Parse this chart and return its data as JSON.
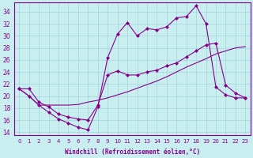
{
  "xlabel": "Windchill (Refroidissement éolien,°C)",
  "bg_color": "#c8eef0",
  "grid_color": "#a8d8dc",
  "line_color": "#880088",
  "xlim": [
    -0.5,
    23.5
  ],
  "ylim": [
    13.5,
    35.5
  ],
  "yticks": [
    14,
    16,
    18,
    20,
    22,
    24,
    26,
    28,
    30,
    32,
    34
  ],
  "xticks": [
    0,
    1,
    2,
    3,
    4,
    5,
    6,
    7,
    8,
    9,
    10,
    11,
    12,
    13,
    14,
    15,
    16,
    17,
    18,
    19,
    20,
    21,
    22,
    23
  ],
  "line1_x": [
    0,
    1,
    2,
    3,
    4,
    5,
    6,
    7,
    8,
    9,
    10,
    11,
    12,
    13,
    14,
    15,
    16,
    17,
    18,
    19,
    20,
    21,
    22,
    23
  ],
  "line1_y": [
    21.2,
    20.0,
    18.5,
    17.3,
    16.2,
    15.5,
    14.8,
    14.4,
    18.2,
    26.4,
    30.3,
    32.2,
    30.0,
    31.2,
    31.0,
    31.5,
    33.0,
    33.2,
    35.0,
    32.0,
    21.5,
    20.2,
    19.7,
    19.7
  ],
  "line2_x": [
    0,
    1,
    2,
    3,
    4,
    5,
    6,
    7,
    8,
    9,
    10,
    11,
    12,
    13,
    14,
    15,
    16,
    17,
    18,
    19,
    20,
    21,
    22,
    23
  ],
  "line2_y": [
    21.2,
    20.0,
    18.5,
    18.5,
    18.5,
    18.5,
    18.6,
    19.0,
    19.3,
    19.7,
    20.2,
    20.7,
    21.3,
    21.9,
    22.5,
    23.2,
    24.0,
    24.8,
    25.5,
    26.2,
    27.0,
    27.5,
    28.0,
    28.2
  ],
  "line3_x": [
    0,
    1,
    2,
    3,
    4,
    5,
    6,
    7,
    8,
    9,
    10,
    11,
    12,
    13,
    14,
    15,
    16,
    17,
    18,
    19,
    20,
    21,
    22,
    23
  ],
  "line3_y": [
    21.2,
    21.2,
    19.0,
    18.2,
    17.0,
    16.5,
    16.2,
    16.0,
    18.5,
    23.5,
    24.2,
    23.5,
    23.5,
    24.0,
    24.3,
    25.0,
    25.5,
    26.5,
    27.5,
    28.5,
    28.8,
    21.8,
    20.5,
    19.7
  ]
}
